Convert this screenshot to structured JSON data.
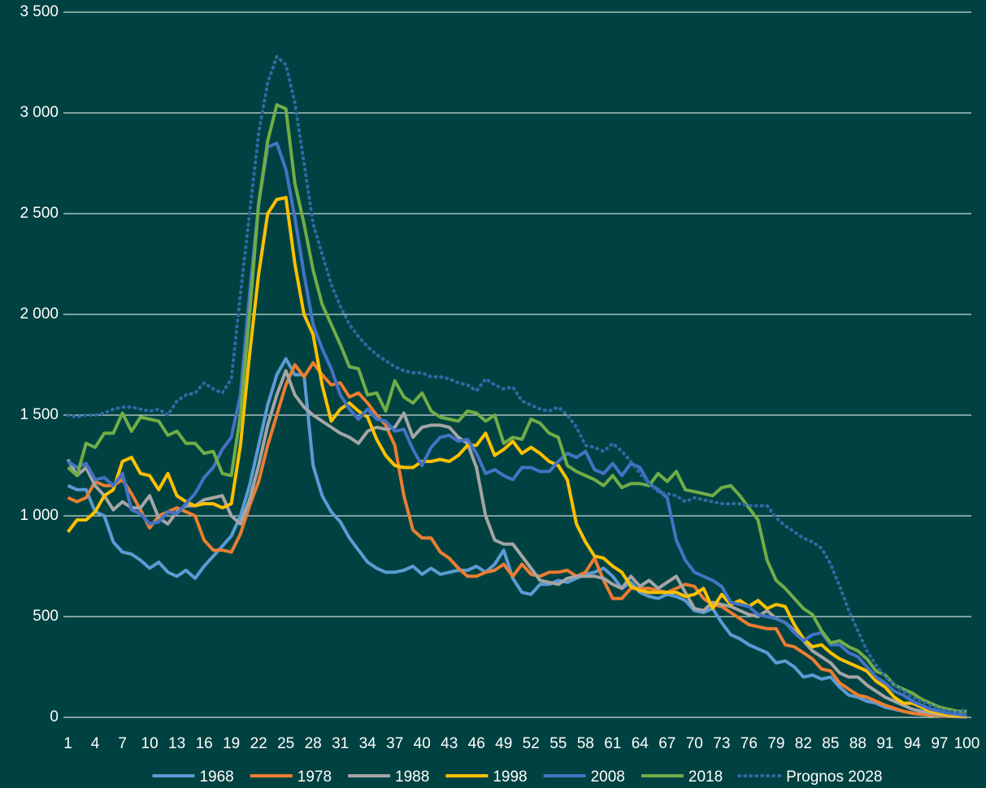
{
  "chart_data": {
    "type": "line",
    "x": [
      1,
      2,
      3,
      4,
      5,
      6,
      7,
      8,
      9,
      10,
      11,
      12,
      13,
      14,
      15,
      16,
      17,
      18,
      19,
      20,
      21,
      22,
      23,
      24,
      25,
      26,
      27,
      28,
      29,
      30,
      31,
      32,
      33,
      34,
      35,
      36,
      37,
      38,
      39,
      40,
      41,
      42,
      43,
      44,
      45,
      46,
      47,
      48,
      49,
      50,
      51,
      52,
      53,
      54,
      55,
      56,
      57,
      58,
      59,
      60,
      61,
      62,
      63,
      64,
      65,
      66,
      67,
      68,
      69,
      70,
      71,
      72,
      73,
      74,
      75,
      76,
      77,
      78,
      79,
      80,
      81,
      82,
      83,
      84,
      85,
      86,
      87,
      88,
      89,
      90,
      91,
      92,
      93,
      94,
      95,
      96,
      97,
      98,
      99,
      100
    ],
    "xlim": [
      1,
      100
    ],
    "xticks": [
      1,
      4,
      7,
      10,
      13,
      16,
      19,
      22,
      25,
      28,
      31,
      34,
      37,
      40,
      43,
      46,
      49,
      52,
      55,
      58,
      61,
      64,
      67,
      70,
      73,
      76,
      79,
      82,
      85,
      88,
      91,
      94,
      97,
      100
    ],
    "ylim": [
      0,
      3500
    ],
    "yticks": [
      0,
      500,
      {
        "value": 1000,
        "label": "1 000"
      },
      {
        "value": 1500,
        "label": "1 500"
      },
      {
        "value": 2000,
        "label": "2 000"
      },
      {
        "value": 2500,
        "label": "2 500"
      },
      {
        "value": 3000,
        "label": "3 000"
      },
      {
        "value": 3500,
        "label": "3 500"
      }
    ],
    "grid": true,
    "legend": "bottom",
    "series": [
      {
        "name": "1968",
        "color": "#5b9bd5",
        "values": [
          1150,
          1130,
          1130,
          1020,
          1000,
          870,
          820,
          810,
          780,
          740,
          770,
          720,
          700,
          730,
          690,
          750,
          800,
          850,
          900,
          1000,
          1150,
          1350,
          1550,
          1700,
          1780,
          1700,
          1700,
          1250,
          1100,
          1020,
          970,
          890,
          830,
          770,
          740,
          720,
          720,
          730,
          750,
          710,
          740,
          710,
          720,
          730,
          730,
          750,
          720,
          760,
          830,
          690,
          620,
          610,
          660,
          660,
          680,
          670,
          690,
          710,
          720,
          740,
          700,
          640,
          670,
          620,
          600,
          590,
          610,
          600,
          580,
          530,
          520,
          540,
          470,
          410,
          390,
          360,
          340,
          320,
          270,
          280,
          250,
          200,
          210,
          190,
          200,
          150,
          110,
          100,
          80,
          70,
          50,
          40,
          30,
          20,
          15,
          10,
          7,
          5,
          3,
          2
        ]
      },
      {
        "name": "1978",
        "color": "#ed7d31",
        "values": [
          1090,
          1070,
          1090,
          1170,
          1150,
          1150,
          1180,
          1110,
          1030,
          940,
          1000,
          1020,
          1040,
          1020,
          1000,
          880,
          830,
          830,
          820,
          910,
          1050,
          1170,
          1350,
          1500,
          1650,
          1750,
          1690,
          1760,
          1700,
          1650,
          1660,
          1590,
          1610,
          1560,
          1500,
          1450,
          1350,
          1100,
          930,
          890,
          890,
          820,
          790,
          740,
          700,
          700,
          720,
          730,
          760,
          700,
          760,
          710,
          700,
          720,
          720,
          730,
          700,
          720,
          790,
          680,
          590,
          590,
          640,
          640,
          640,
          630,
          620,
          640,
          660,
          650,
          590,
          560,
          550,
          520,
          490,
          460,
          450,
          440,
          440,
          360,
          350,
          320,
          290,
          240,
          230,
          170,
          140,
          110,
          100,
          80,
          60,
          45,
          30,
          20,
          15,
          10,
          8,
          5,
          4,
          3
        ]
      },
      {
        "name": "1988",
        "color": "#a5a5a5",
        "values": [
          1280,
          1200,
          1240,
          1150,
          1100,
          1030,
          1070,
          1040,
          1040,
          1100,
          990,
          960,
          1020,
          1050,
          1050,
          1080,
          1090,
          1100,
          1000,
          960,
          1080,
          1250,
          1450,
          1600,
          1720,
          1600,
          1540,
          1500,
          1470,
          1440,
          1410,
          1390,
          1360,
          1420,
          1440,
          1430,
          1440,
          1510,
          1390,
          1440,
          1450,
          1450,
          1440,
          1390,
          1360,
          1240,
          1000,
          880,
          860,
          860,
          800,
          740,
          680,
          670,
          660,
          690,
          700,
          700,
          700,
          690,
          660,
          640,
          700,
          650,
          680,
          640,
          670,
          700,
          620,
          540,
          530,
          570,
          560,
          550,
          530,
          510,
          500,
          530,
          490,
          470,
          430,
          380,
          330,
          300,
          270,
          220,
          200,
          200,
          160,
          130,
          100,
          80,
          60,
          40,
          30,
          20,
          12,
          8,
          5,
          3
        ]
      },
      {
        "name": "1998",
        "color": "#ffc000",
        "values": [
          920,
          980,
          980,
          1020,
          1100,
          1130,
          1270,
          1290,
          1210,
          1200,
          1130,
          1210,
          1100,
          1070,
          1050,
          1060,
          1060,
          1040,
          1060,
          1350,
          1800,
          2200,
          2500,
          2570,
          2580,
          2250,
          2000,
          1900,
          1650,
          1470,
          1530,
          1560,
          1520,
          1490,
          1380,
          1300,
          1250,
          1240,
          1240,
          1270,
          1270,
          1280,
          1270,
          1300,
          1350,
          1350,
          1410,
          1300,
          1330,
          1370,
          1310,
          1340,
          1310,
          1270,
          1250,
          1180,
          960,
          870,
          800,
          790,
          750,
          720,
          650,
          630,
          620,
          620,
          620,
          620,
          600,
          610,
          640,
          540,
          610,
          560,
          580,
          550,
          580,
          540,
          560,
          550,
          460,
          390,
          350,
          360,
          320,
          290,
          270,
          250,
          230,
          180,
          150,
          100,
          70,
          70,
          50,
          30,
          20,
          10,
          8,
          5
        ]
      },
      {
        "name": "2008",
        "color": "#4472c4",
        "values": [
          1270,
          1240,
          1260,
          1180,
          1190,
          1150,
          1210,
          1030,
          1010,
          960,
          970,
          1020,
          1010,
          1060,
          1110,
          1190,
          1240,
          1330,
          1390,
          1600,
          2100,
          2550,
          2830,
          2850,
          2720,
          2480,
          2200,
          1950,
          1830,
          1730,
          1600,
          1530,
          1480,
          1530,
          1480,
          1470,
          1420,
          1430,
          1330,
          1250,
          1340,
          1390,
          1400,
          1370,
          1380,
          1310,
          1210,
          1230,
          1200,
          1180,
          1240,
          1240,
          1220,
          1220,
          1270,
          1310,
          1290,
          1320,
          1230,
          1210,
          1260,
          1200,
          1260,
          1240,
          1160,
          1130,
          1090,
          880,
          780,
          720,
          700,
          680,
          650,
          570,
          560,
          550,
          510,
          500,
          490,
          470,
          420,
          380,
          410,
          420,
          360,
          360,
          320,
          300,
          250,
          200,
          170,
          130,
          110,
          80,
          60,
          40,
          30,
          20,
          15,
          10
        ]
      },
      {
        "name": "2018",
        "color": "#70ad47",
        "values": [
          1240,
          1200,
          1360,
          1340,
          1410,
          1410,
          1510,
          1420,
          1490,
          1480,
          1470,
          1400,
          1420,
          1360,
          1360,
          1310,
          1320,
          1210,
          1200,
          1500,
          2000,
          2550,
          2860,
          3040,
          3020,
          2650,
          2450,
          2220,
          2050,
          1950,
          1850,
          1740,
          1730,
          1600,
          1610,
          1520,
          1670,
          1590,
          1560,
          1610,
          1520,
          1490,
          1480,
          1470,
          1520,
          1510,
          1470,
          1500,
          1360,
          1390,
          1380,
          1480,
          1460,
          1410,
          1390,
          1250,
          1220,
          1200,
          1180,
          1150,
          1200,
          1140,
          1160,
          1160,
          1150,
          1210,
          1170,
          1220,
          1130,
          1120,
          1110,
          1100,
          1140,
          1150,
          1100,
          1040,
          980,
          780,
          680,
          640,
          590,
          540,
          510,
          430,
          370,
          380,
          350,
          330,
          290,
          230,
          210,
          160,
          140,
          120,
          90,
          70,
          50,
          40,
          30,
          30
        ]
      },
      {
        "name": "Prognos 2028",
        "color": "#2e6aa6",
        "dash": "dotted",
        "values": [
          1500,
          1490,
          1500,
          1500,
          1510,
          1530,
          1540,
          1540,
          1530,
          1520,
          1530,
          1500,
          1570,
          1600,
          1610,
          1660,
          1630,
          1610,
          1680,
          2100,
          2500,
          2900,
          3150,
          3280,
          3240,
          3050,
          2750,
          2450,
          2300,
          2150,
          2040,
          1950,
          1890,
          1840,
          1800,
          1770,
          1740,
          1720,
          1710,
          1710,
          1690,
          1690,
          1680,
          1660,
          1650,
          1620,
          1680,
          1650,
          1630,
          1640,
          1570,
          1550,
          1530,
          1520,
          1540,
          1500,
          1440,
          1350,
          1340,
          1320,
          1360,
          1320,
          1270,
          1210,
          1160,
          1120,
          1110,
          1100,
          1070,
          1090,
          1080,
          1070,
          1060,
          1060,
          1060,
          1050,
          1050,
          1050,
          990,
          950,
          920,
          890,
          870,
          840,
          760,
          650,
          530,
          430,
          330,
          260,
          200,
          160,
          130,
          100,
          80,
          60,
          40,
          30,
          25,
          40
        ]
      }
    ]
  }
}
